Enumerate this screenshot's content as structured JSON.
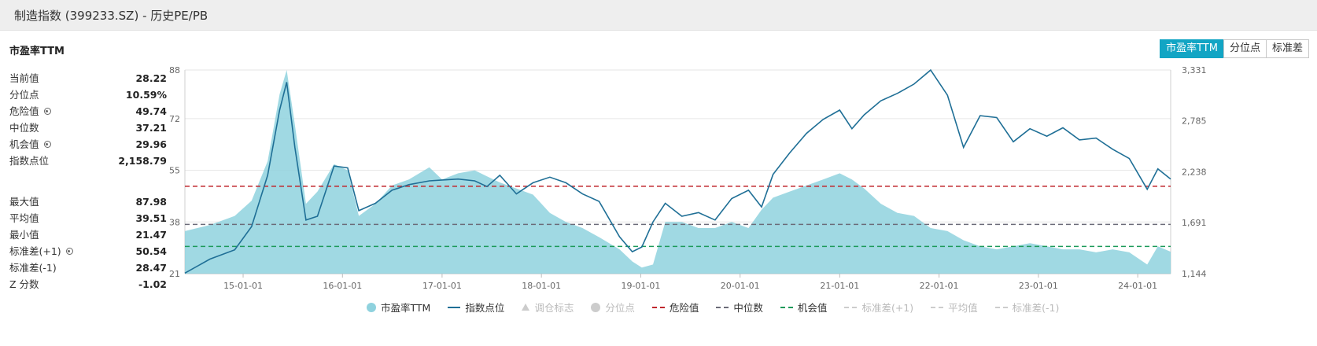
{
  "header": {
    "title": "制造指数 (399233.SZ) - 历史PE/PB"
  },
  "panel": {
    "title": "市盈率TTM"
  },
  "buttons": [
    {
      "label": "市盈率TTM",
      "active": true
    },
    {
      "label": "分位点",
      "active": false
    },
    {
      "label": "标准差",
      "active": false
    }
  ],
  "stats_top": [
    {
      "label": "当前值",
      "value": "28.22",
      "gear": false
    },
    {
      "label": "分位点",
      "value": "10.59%",
      "gear": false
    },
    {
      "label": "危险值",
      "value": "49.74",
      "gear": true
    },
    {
      "label": "中位数",
      "value": "37.21",
      "gear": false
    },
    {
      "label": "机会值",
      "value": "29.96",
      "gear": true
    },
    {
      "label": "指数点位",
      "value": "2,158.79",
      "gear": false
    }
  ],
  "stats_bottom": [
    {
      "label": "最大值",
      "value": "87.98",
      "gear": false
    },
    {
      "label": "平均值",
      "value": "39.51",
      "gear": false
    },
    {
      "label": "最小值",
      "value": "21.47",
      "gear": false
    },
    {
      "label": "标准差(+1)",
      "value": "50.54",
      "gear": true
    },
    {
      "label": "标准差(-1)",
      "value": "28.47",
      "gear": false
    },
    {
      "label": "Z 分数",
      "value": "-1.02",
      "gear": false
    }
  ],
  "legend": [
    {
      "label": "市盈率TTM",
      "kind": "dot",
      "color": "#8fd2de",
      "active": true
    },
    {
      "label": "指数点位",
      "kind": "line",
      "color": "#1f6f96",
      "active": true
    },
    {
      "label": "调仓标志",
      "kind": "triangle",
      "color": "#cccccc",
      "active": false
    },
    {
      "label": "分位点",
      "kind": "dot",
      "color": "#cccccc",
      "active": false
    },
    {
      "label": "危险值",
      "kind": "dash",
      "color": "#c0272d",
      "active": true
    },
    {
      "label": "中位数",
      "kind": "dash",
      "color": "#6b6b78",
      "active": true
    },
    {
      "label": "机会值",
      "kind": "dash",
      "color": "#1d9a5a",
      "active": true
    },
    {
      "label": "标准差(+1)",
      "kind": "dash",
      "color": "#cccccc",
      "active": false
    },
    {
      "label": "平均值",
      "kind": "dash",
      "color": "#cccccc",
      "active": false
    },
    {
      "label": "标准差(-1)",
      "kind": "dash",
      "color": "#cccccc",
      "active": false
    }
  ],
  "chart_data": {
    "type": "area",
    "x_range": [
      "2014-06-01",
      "2024-05-01"
    ],
    "x_ticks": [
      "15-01-01",
      "16-01-01",
      "17-01-01",
      "18-01-01",
      "19-01-01",
      "20-01-01",
      "21-01-01",
      "22-01-01",
      "23-01-01",
      "24-01-01"
    ],
    "y_left_ticks": [
      "21",
      "38",
      "55",
      "72",
      "88"
    ],
    "y_left_range": [
      21,
      88
    ],
    "y_right_ticks": [
      "1,144",
      "1,691",
      "2,238",
      "2,785",
      "3,331"
    ],
    "y_right_range": [
      1144,
      3331
    ],
    "reference_lines": [
      {
        "name": "危险值",
        "value": 49.74,
        "color": "#c0272d"
      },
      {
        "name": "中位数",
        "value": 37.21,
        "color": "#6b6b78"
      },
      {
        "name": "机会值",
        "value": 29.96,
        "color": "#1d9a5a"
      }
    ],
    "series": [
      {
        "name": "市盈率TTM",
        "axis": "left",
        "color": "#8fd2de",
        "x": [
          "2014-06-01",
          "2014-09-01",
          "2014-12-01",
          "2015-02-01",
          "2015-04-01",
          "2015-05-15",
          "2015-06-10",
          "2015-07-10",
          "2015-08-20",
          "2015-10-01",
          "2015-12-01",
          "2016-01-20",
          "2016-03-01",
          "2016-05-01",
          "2016-07-01",
          "2016-09-01",
          "2016-11-15",
          "2017-01-01",
          "2017-03-01",
          "2017-05-01",
          "2017-06-15",
          "2017-08-01",
          "2017-10-01",
          "2017-12-01",
          "2018-02-01",
          "2018-04-01",
          "2018-06-01",
          "2018-08-01",
          "2018-10-15",
          "2018-12-01",
          "2019-01-05",
          "2019-02-15",
          "2019-04-01",
          "2019-06-01",
          "2019-08-01",
          "2019-10-01",
          "2019-12-01",
          "2020-02-01",
          "2020-03-20",
          "2020-05-01",
          "2020-07-01",
          "2020-09-01",
          "2020-11-01",
          "2021-01-01",
          "2021-02-15",
          "2021-04-01",
          "2021-06-01",
          "2021-08-01",
          "2021-10-01",
          "2021-12-01",
          "2022-02-01",
          "2022-04-01",
          "2022-06-01",
          "2022-08-01",
          "2022-10-01",
          "2022-12-01",
          "2023-02-01",
          "2023-04-01",
          "2023-06-01",
          "2023-08-01",
          "2023-10-01",
          "2023-12-01",
          "2024-02-05",
          "2024-03-15",
          "2024-05-01"
        ],
        "values": [
          35,
          37,
          40,
          45,
          58,
          80,
          88,
          70,
          44,
          48,
          57,
          55,
          40,
          44,
          50,
          52,
          56,
          52,
          54,
          55,
          53,
          51,
          49,
          47,
          41,
          38,
          36,
          33,
          29,
          25,
          23,
          24,
          38,
          38,
          36,
          36,
          38,
          36,
          42,
          46,
          48,
          50,
          52,
          54,
          52,
          49,
          44,
          41,
          40,
          36,
          35,
          32,
          30,
          29,
          30,
          31,
          30,
          29,
          29,
          28,
          29,
          28,
          24,
          30,
          28.22
        ]
      },
      {
        "name": "指数点位",
        "axis": "right",
        "color": "#1f6f96",
        "x": [
          "2014-06-01",
          "2014-09-01",
          "2014-12-01",
          "2015-02-01",
          "2015-04-01",
          "2015-05-15",
          "2015-06-10",
          "2015-07-10",
          "2015-08-20",
          "2015-10-01",
          "2015-12-01",
          "2016-01-20",
          "2016-03-01",
          "2016-05-01",
          "2016-07-01",
          "2016-09-01",
          "2016-11-15",
          "2017-01-01",
          "2017-03-01",
          "2017-05-01",
          "2017-06-15",
          "2017-08-01",
          "2017-10-01",
          "2017-12-01",
          "2018-02-01",
          "2018-04-01",
          "2018-06-01",
          "2018-08-01",
          "2018-10-15",
          "2018-12-01",
          "2019-01-05",
          "2019-02-15",
          "2019-04-01",
          "2019-06-01",
          "2019-08-01",
          "2019-10-01",
          "2019-12-01",
          "2020-02-01",
          "2020-03-20",
          "2020-05-01",
          "2020-07-01",
          "2020-09-01",
          "2020-11-01",
          "2021-01-01",
          "2021-02-15",
          "2021-04-01",
          "2021-06-01",
          "2021-08-01",
          "2021-10-01",
          "2021-12-01",
          "2022-02-01",
          "2022-04-01",
          "2022-06-01",
          "2022-08-01",
          "2022-10-01",
          "2022-12-01",
          "2023-02-01",
          "2023-04-01",
          "2023-06-01",
          "2023-08-01",
          "2023-10-01",
          "2023-12-01",
          "2024-02-05",
          "2024-03-15",
          "2024-05-01"
        ],
        "values": [
          1150,
          1300,
          1400,
          1650,
          2200,
          2900,
          3200,
          2500,
          1720,
          1760,
          2300,
          2280,
          1820,
          1900,
          2040,
          2100,
          2140,
          2150,
          2160,
          2140,
          2080,
          2200,
          2000,
          2120,
          2180,
          2120,
          2000,
          1920,
          1540,
          1380,
          1430,
          1700,
          1900,
          1760,
          1800,
          1720,
          1950,
          2040,
          1860,
          2210,
          2440,
          2650,
          2800,
          2900,
          2700,
          2850,
          3000,
          3080,
          3180,
          3330,
          3060,
          2500,
          2840,
          2820,
          2560,
          2700,
          2620,
          2710,
          2580,
          2600,
          2480,
          2380,
          2050,
          2270,
          2158.79
        ]
      }
    ]
  }
}
